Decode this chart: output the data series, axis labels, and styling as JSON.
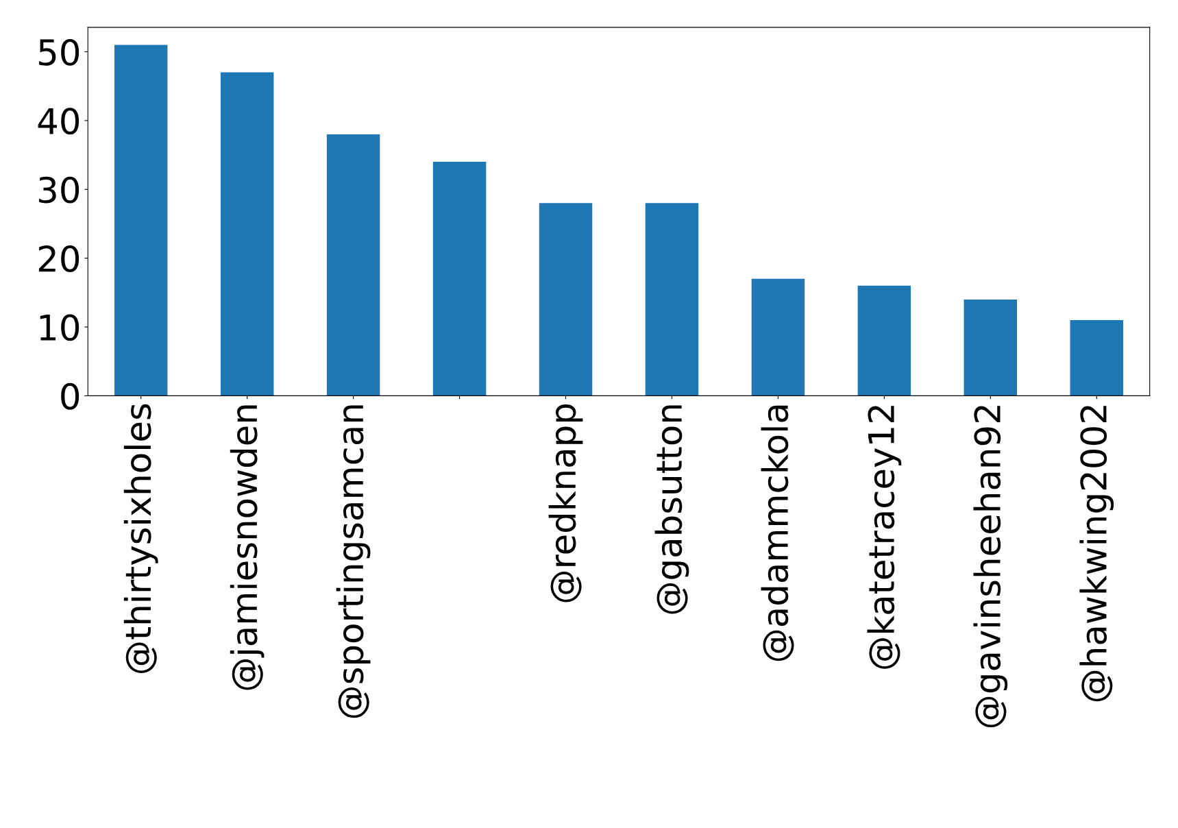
{
  "chart_data": {
    "type": "bar",
    "categories": [
      "@thirtysixholes",
      "@jamiesnowden",
      "@sportingsamcan",
      null,
      "@redknapp",
      "@gabsutton",
      "@adammckola",
      "@katetracey12",
      "@gavinsheehan92",
      "@hawkwing2002"
    ],
    "values": [
      51,
      47,
      38,
      34,
      28,
      28,
      17,
      16,
      14,
      11
    ],
    "color": "#1f77b4",
    "ylim": [
      0,
      53.55
    ],
    "yticks": [
      0,
      10,
      20,
      30,
      40,
      50
    ],
    "grid": false,
    "legend": false
  }
}
